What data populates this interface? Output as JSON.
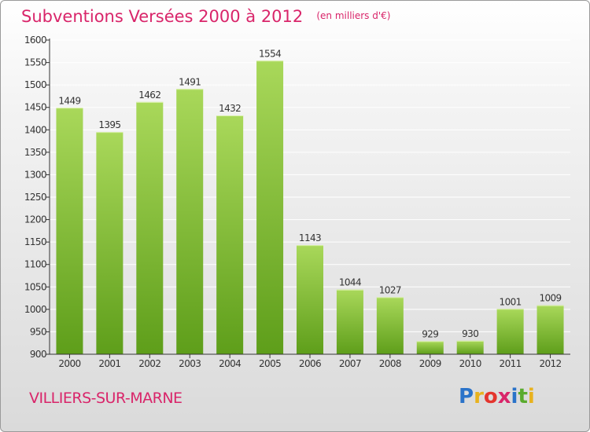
{
  "header": {
    "title": "Subventions Versées 2000 à 2012",
    "subtitle": "(en milliers d'€)"
  },
  "footer": {
    "commune": "VILLIERS-SUR-MARNE",
    "brand": "Proxiti",
    "brand_colors": [
      "#2a73c9",
      "#e8b21e",
      "#e4352d",
      "#d9256a",
      "#2a73c9",
      "#5aab2e",
      "#e8b21e"
    ]
  },
  "colors": {
    "accent": "#d9256a",
    "bar_light": "#a9d85a",
    "bar_dark": "#5e9e1a",
    "grid": "#ffffff",
    "axis": "#333333"
  },
  "chart_data": {
    "type": "bar",
    "title": "Subventions Versées 2000 à 2012",
    "subtitle": "(en milliers d'€)",
    "categories": [
      "2000",
      "2001",
      "2002",
      "2003",
      "2004",
      "2005",
      "2006",
      "2007",
      "2008",
      "2009",
      "2010",
      "2011",
      "2012"
    ],
    "values": [
      1449,
      1395,
      1462,
      1491,
      1432,
      1554,
      1143,
      1044,
      1027,
      929,
      930,
      1001,
      1009
    ],
    "ylim": [
      900,
      1600
    ],
    "yticks": [
      900,
      950,
      1000,
      1050,
      1100,
      1150,
      1200,
      1250,
      1300,
      1350,
      1400,
      1450,
      1500,
      1550,
      1600
    ],
    "grid": true,
    "xlabel": "",
    "ylabel": ""
  }
}
